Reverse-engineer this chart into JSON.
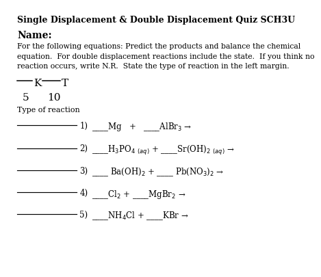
{
  "title": "Single Displacement & Double Displacement Quiz SCH3U",
  "name_label": "Name:",
  "instructions": "For the following equations: Predict the products and balance the chemical\nequation.  For double displacement reactions include the state.  If you think no\nreaction occurs, write N.R.  State the type of reaction in the left margin.",
  "score_label_k": "K",
  "score_label_t": "T",
  "score_value_k": "5",
  "score_value_t": "10",
  "type_label": "Type of reaction",
  "eq1": "____Mg   +   ____AlBr$_3$ →",
  "eq2": "____H$_3$PO$_4$ $_{(aq)}$ + ____Sr(OH)$_2$ $_{(aq)}$ →",
  "eq3": "____ Ba(OH)$_2$ + ____ Pb(NO$_3$)$_2$ →",
  "eq4": "____Cl$_2$ + ____MgBr$_2$ →",
  "eq5": "____NH$_4$Cl + ____KBr →",
  "bg_color": "#ffffff",
  "text_color": "#000000",
  "font": "DejaVu Serif",
  "title_fontsize": 9.0,
  "body_fontsize": 7.8,
  "eq_fontsize": 8.5,
  "name_fontsize": 10.0,
  "score_fontsize": 11.0,
  "type_fontsize": 8.0
}
